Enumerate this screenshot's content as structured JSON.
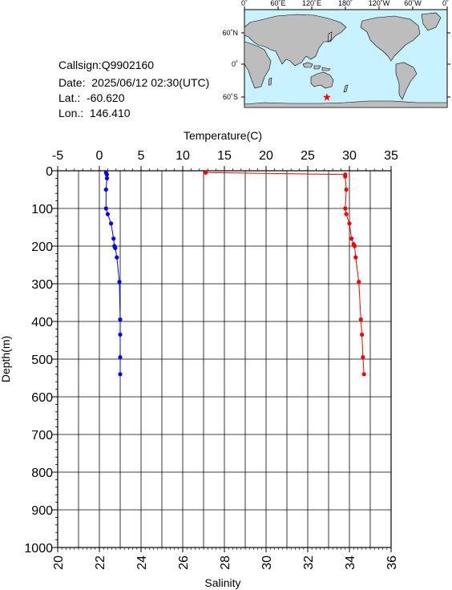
{
  "info": {
    "callsign": "Callsign:Q9902160",
    "date": "Date:  2025/06/12 02:30(UTC)",
    "lat": "Lat.:  -60.620",
    "lon": "Lon.:  146.410"
  },
  "map": {
    "top_ticks": [
      "0˚",
      "60˚E",
      "120˚E",
      "180˚",
      "120˚W",
      "60˚W",
      "0˚"
    ],
    "lat_ticks": [
      "60˚N",
      "0˚",
      "60˚S"
    ],
    "ocean_color": "#c8f2ff",
    "land_color": "#bdbdbd",
    "marker": {
      "lon": 146.41,
      "lat": -60.62,
      "color": "#ff0000",
      "shape": "star"
    }
  },
  "chart_data": {
    "type": "line",
    "title": "",
    "ylabel": "Depth(m)",
    "ylim": [
      1000,
      0
    ],
    "yticks": [
      "0",
      "100",
      "200",
      "300",
      "400",
      "500",
      "600",
      "700",
      "800",
      "900",
      "1000"
    ],
    "temperature_axis": {
      "label": "Temperature(C)",
      "range": [
        -5,
        35
      ],
      "ticks": [
        "-5",
        "0",
        "5",
        "10",
        "15",
        "20",
        "25",
        "30",
        "35"
      ]
    },
    "salinity_axis": {
      "label": "Salinity",
      "range": [
        20,
        36
      ],
      "ticks": [
        "20",
        "22",
        "24",
        "26",
        "28",
        "30",
        "32",
        "34",
        "36"
      ]
    },
    "grid": true,
    "series": [
      {
        "axis": "temperature",
        "color": "#0000ff",
        "depth": [
          5,
          10,
          20,
          50,
          100,
          115,
          140,
          180,
          200,
          205,
          230,
          295,
          395,
          435,
          495,
          540
        ],
        "values": [
          0.8,
          0.9,
          0.9,
          0.8,
          0.8,
          1.0,
          1.4,
          1.7,
          1.8,
          1.9,
          2.1,
          2.4,
          2.5,
          2.5,
          2.5,
          2.5
        ]
      },
      {
        "axis": "salinity",
        "color": "#ff0000",
        "depth": [
          5,
          10,
          15,
          50,
          100,
          115,
          140,
          180,
          195,
          200,
          230,
          295,
          395,
          435,
          495,
          540
        ],
        "values": [
          27.1,
          33.8,
          33.8,
          33.85,
          33.8,
          33.85,
          34.0,
          34.1,
          34.2,
          34.25,
          34.3,
          34.45,
          34.55,
          34.6,
          34.65,
          34.7
        ]
      }
    ]
  }
}
